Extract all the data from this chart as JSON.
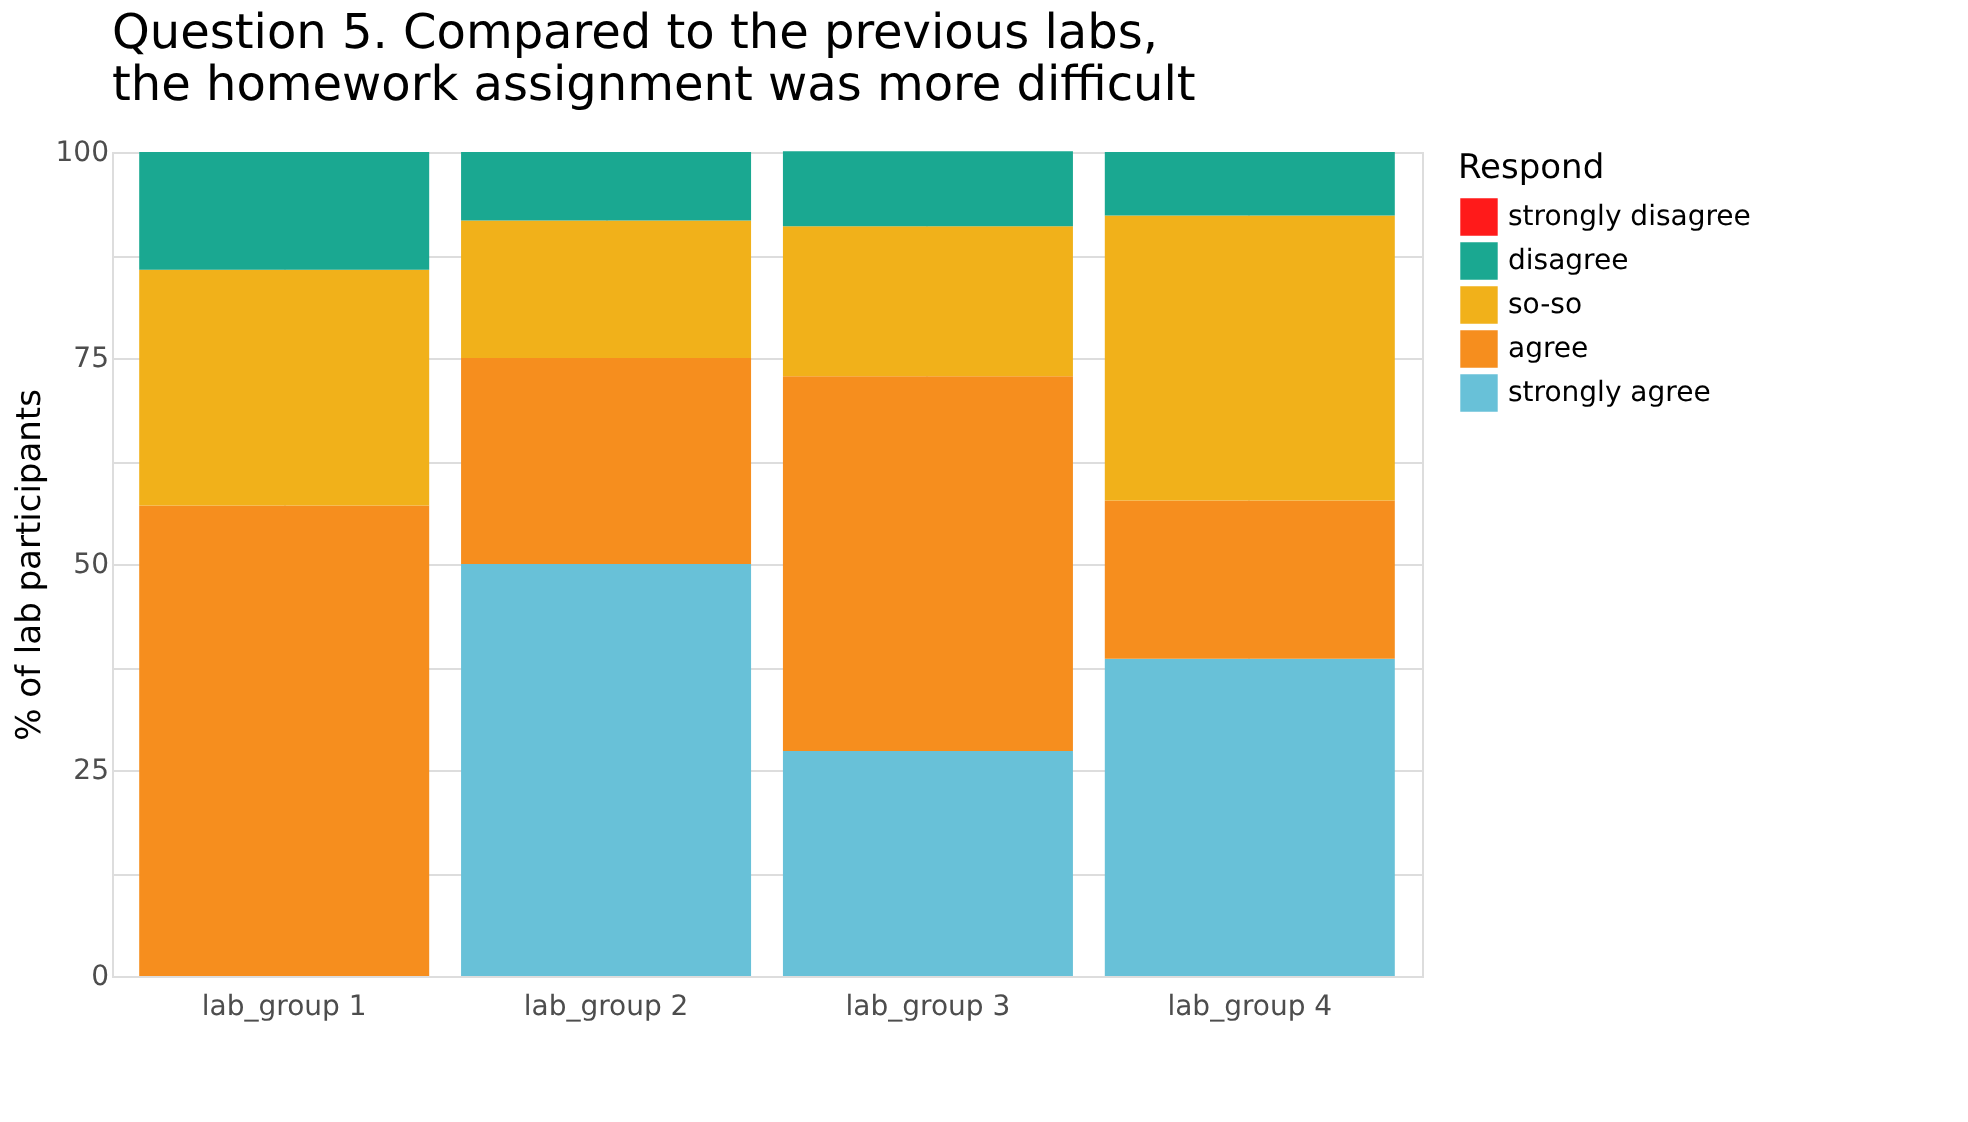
{
  "chart_data": {
    "type": "bar",
    "title": "Question 5. Compared to the previous labs, the homework assignment was more difficult",
    "ylabel": "% of lab participants",
    "legend_title": "Respond",
    "categories": [
      "lab_group 1",
      "lab_group 2",
      "lab_group 3",
      "lab_group 4"
    ],
    "stacked": true,
    "series": [
      {
        "name": "strongly agree",
        "color": "#68c1d8",
        "values": [
          0,
          50,
          27.3,
          38.5
        ]
      },
      {
        "name": "agree",
        "color": "#f68e1e",
        "values": [
          57.1,
          25,
          45.5,
          19.2
        ]
      },
      {
        "name": "so-so",
        "color": "#f1b11a",
        "values": [
          28.6,
          16.7,
          18.2,
          34.6
        ]
      },
      {
        "name": "disagree",
        "color": "#1aa891",
        "values": [
          14.3,
          8.3,
          9.1,
          7.7
        ]
      },
      {
        "name": "strongly disagree",
        "color": "#ff1a1a",
        "values": [
          0,
          0,
          0,
          0
        ]
      }
    ],
    "ylim": [
      0,
      100
    ],
    "yticks": [
      0,
      {
        "value": 12.5,
        "label": null
      },
      25,
      {
        "value": 37.5,
        "label": null
      },
      50,
      {
        "value": 62.5,
        "label": null
      },
      75,
      {
        "value": 87.5,
        "label": null
      },
      100
    ],
    "grid": true,
    "legend": "right"
  }
}
